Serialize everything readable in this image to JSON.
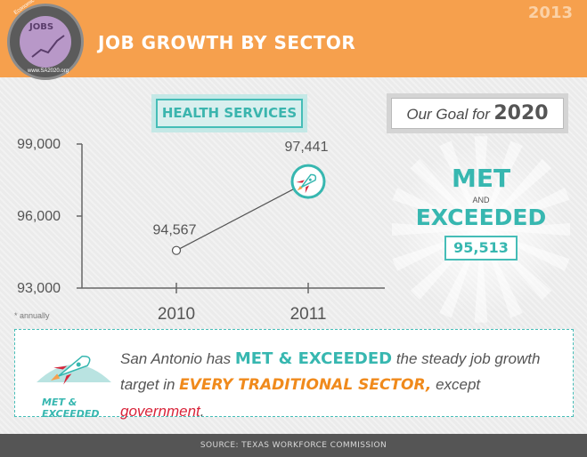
{
  "header": {
    "title": "JOB GROWTH BY SECTOR",
    "year": "2013",
    "logo": {
      "top_text": "Economic Competitiveness",
      "center_text": "JOBS",
      "bottom_text": "www.SA2020.org"
    },
    "background_color": "#f6a04d"
  },
  "section_label": "HEALTH SERVICES",
  "goal": {
    "prefix": "Our Goal for",
    "year": "2020",
    "met": "MET",
    "and": "AND",
    "exceeded": "EXCEEDED",
    "value": "95,513"
  },
  "chart_data": {
    "type": "line",
    "title": "",
    "xlabel": "",
    "ylabel": "",
    "categories": [
      "2010",
      "2011"
    ],
    "values": [
      94567,
      97441
    ],
    "value_labels": [
      "94,567",
      "97,441"
    ],
    "y_ticks": [
      "99,000",
      "96,000",
      "93,000"
    ],
    "y_tick_values": [
      99000,
      96000,
      93000
    ],
    "ylim": [
      93000,
      99000
    ],
    "grid": false,
    "note": "* annually",
    "line_color": "#555555",
    "accent_color": "#37b7b0"
  },
  "callout": {
    "badge_label": "MET & EXCEEDED",
    "text_1": "San Antonio has ",
    "highlight_1": "MET & EXCEEDED",
    "text_2": " the steady job growth target in ",
    "highlight_2": "EVERY TRADITIONAL SECTOR,",
    "text_3": " except ",
    "highlight_3": "government",
    "text_4": "."
  },
  "footer": {
    "source": "SOURCE: TEXAS WORKFORCE COMMISSION"
  },
  "colors": {
    "teal": "#37b7b0",
    "orange": "#f6a04d",
    "red": "#d8243a",
    "footer": "#555555"
  }
}
